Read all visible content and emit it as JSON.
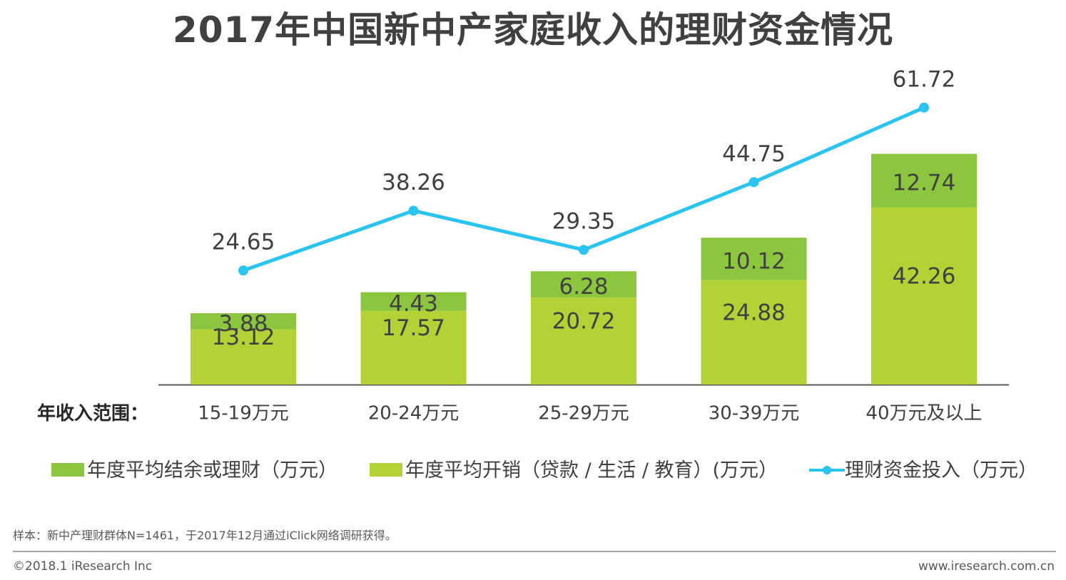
{
  "title": "2017年中国新中产家庭收入的理财资金情况",
  "chart_data": {
    "type": "bar",
    "stacked": true,
    "title": "2017年中国新中产家庭收入的理财资金情况",
    "xlabel": "年收入范围：",
    "categories": [
      "15-19万元",
      "20-24万元",
      "25-29万元",
      "30-39万元",
      "40万元及以上"
    ],
    "series": [
      {
        "name": "年度平均开销（贷款 / 生活 / 教育）(万元）",
        "kind": "bar",
        "color": "#b2d235",
        "values": [
          13.12,
          17.57,
          20.72,
          24.88,
          42.26
        ]
      },
      {
        "name": "年度平均结余或理财（万元）",
        "kind": "bar",
        "color": "#8cc63f",
        "values": [
          3.88,
          4.43,
          6.28,
          10.12,
          12.74
        ]
      },
      {
        "name": "理财资金投入（万元）",
        "kind": "line",
        "color": "#29c4f0",
        "values": [
          24.65,
          38.26,
          29.35,
          44.75,
          61.72
        ]
      }
    ]
  },
  "legend": {
    "surplus_label": "年度平均结余或理财（万元）",
    "expense_label": "年度平均开销（贷款 / 生活 / 教育）(万元）",
    "invest_label": "理财资金投入（万元）"
  },
  "footer": {
    "note": "样本：新中产理财群体N=1461，于2017年12月通过iClick网络调研获得。",
    "copyright": "©2018.1 iResearch Inc",
    "website": "www.iresearch.com.cn"
  }
}
